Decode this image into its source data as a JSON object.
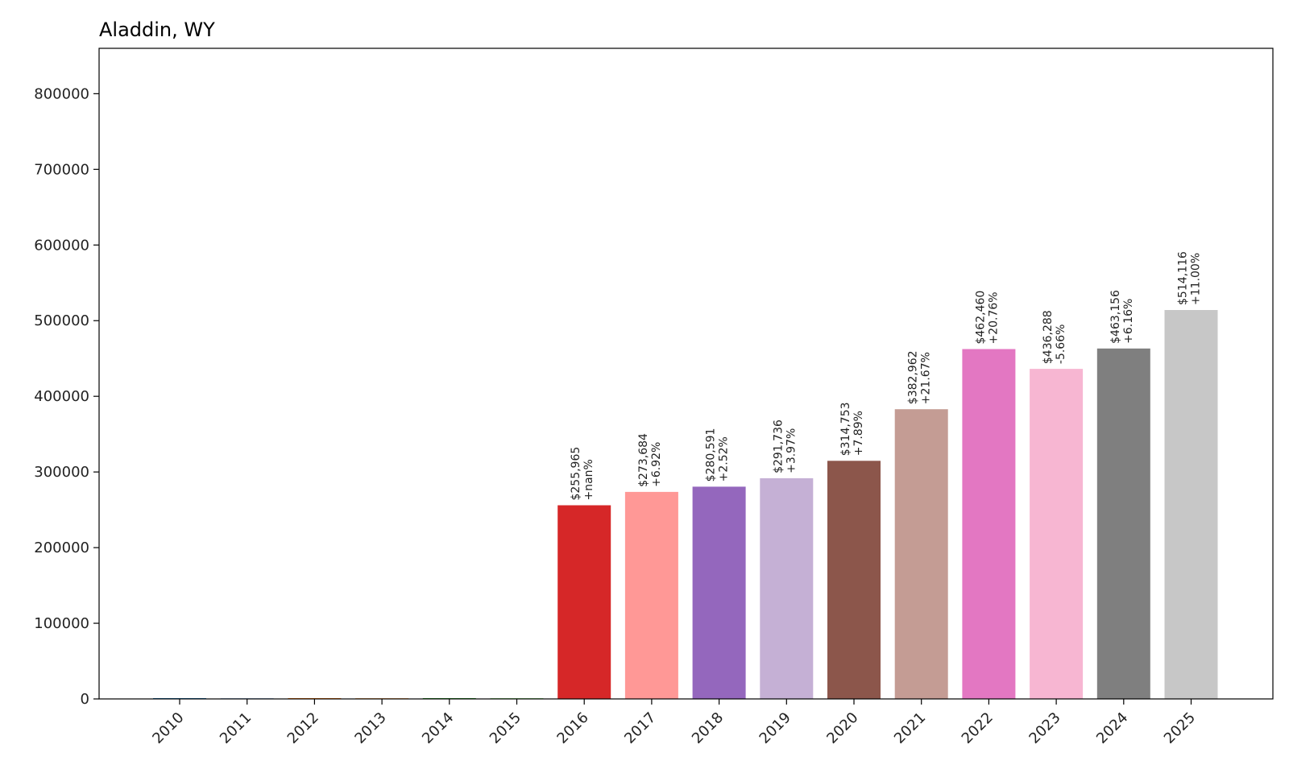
{
  "chart_data": {
    "type": "bar",
    "title": "Aladdin, WY",
    "xlabel": "",
    "ylabel": "",
    "ylim": [
      0,
      860000
    ],
    "yticks": [
      0,
      100000,
      200000,
      300000,
      400000,
      500000,
      600000,
      700000,
      800000
    ],
    "categories": [
      "2010",
      "2011",
      "2012",
      "2013",
      "2014",
      "2015",
      "2016",
      "2017",
      "2018",
      "2019",
      "2020",
      "2021",
      "2022",
      "2023",
      "2024",
      "2025"
    ],
    "values": [
      0,
      0,
      0,
      0,
      0,
      0,
      255965,
      273684,
      280591,
      291736,
      314753,
      382962,
      462460,
      436288,
      463156,
      514116
    ],
    "value_labels": [
      "",
      "",
      "",
      "",
      "",
      "",
      "$255,965",
      "$273,684",
      "$280,591",
      "$291,736",
      "$314,753",
      "$382,962",
      "$462,460",
      "$436,288",
      "$463,156",
      "$514,116"
    ],
    "change_labels": [
      "",
      "",
      "",
      "",
      "",
      "",
      "+nan%",
      "+6.92%",
      "+2.52%",
      "+3.97%",
      "+7.89%",
      "+21.67%",
      "+20.76%",
      "-5.66%",
      "+6.16%",
      "+11.00%"
    ],
    "colors": [
      "#1f77b4",
      "#aec7e8",
      "#ff7f0e",
      "#ffbb78",
      "#2ca02c",
      "#98df8a",
      "#d62728",
      "#ff9896",
      "#9467bd",
      "#c5b0d5",
      "#8c564b",
      "#c49c94",
      "#e377c2",
      "#f7b6d2",
      "#7f7f7f",
      "#c7c7c7"
    ],
    "grid": false,
    "legend": "none"
  }
}
